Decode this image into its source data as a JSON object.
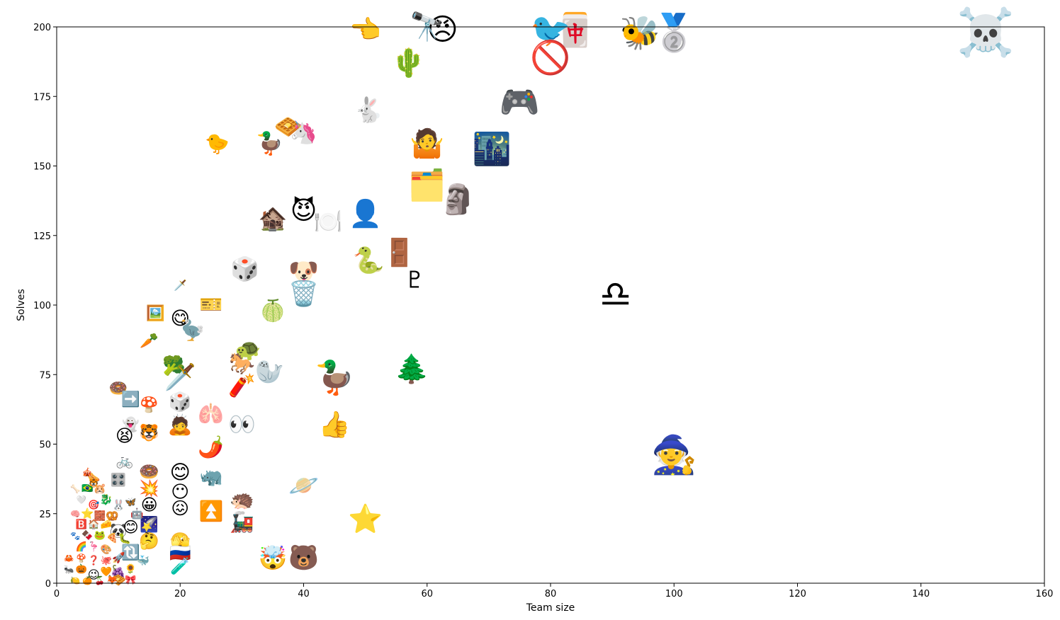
{
  "chart_data": {
    "type": "scatter",
    "title": "",
    "xlabel": "Team size",
    "ylabel": "Solves",
    "xlim": [
      0,
      160
    ],
    "ylim": [
      0,
      200
    ],
    "xticks": [
      0,
      20,
      40,
      60,
      80,
      100,
      120,
      140,
      160
    ],
    "yticks": [
      0,
      25,
      50,
      75,
      100,
      125,
      150,
      175,
      200
    ],
    "grid": false,
    "marker": "emoji",
    "points": [
      {
        "x": 150.5,
        "y": 198,
        "label": "☠️",
        "size": 80
      },
      {
        "x": 100,
        "y": 198,
        "label": "🥈",
        "size": 62
      },
      {
        "x": 94.5,
        "y": 198,
        "label": "🐝",
        "size": 56
      },
      {
        "x": 84,
        "y": 199,
        "label": "🀄",
        "size": 56
      },
      {
        "x": 80,
        "y": 199,
        "label": "🐦",
        "size": 56
      },
      {
        "x": 80,
        "y": 189,
        "label": "🚫",
        "size": 56
      },
      {
        "x": 62.5,
        "y": 199,
        "label": "😠",
        "size": 52
      },
      {
        "x": 60,
        "y": 200,
        "label": "🔭",
        "size": 48
      },
      {
        "x": 50,
        "y": 199,
        "label": "👈",
        "size": 44
      },
      {
        "x": 57,
        "y": 187,
        "label": "🌵",
        "size": 48
      },
      {
        "x": 75,
        "y": 173,
        "label": "🎮",
        "size": 56
      },
      {
        "x": 50.5,
        "y": 170,
        "label": "🐇",
        "size": 42
      },
      {
        "x": 70.5,
        "y": 156,
        "label": "🌃",
        "size": 54
      },
      {
        "x": 60,
        "y": 158,
        "label": "🤷",
        "size": 48
      },
      {
        "x": 26,
        "y": 158,
        "label": "🐤",
        "size": 34
      },
      {
        "x": 34.5,
        "y": 158,
        "label": "🦆",
        "size": 38
      },
      {
        "x": 37.5,
        "y": 164,
        "label": "🧇",
        "size": 38
      },
      {
        "x": 40,
        "y": 162,
        "label": "🦄",
        "size": 38
      },
      {
        "x": 60,
        "y": 143,
        "label": "🗂️",
        "size": 52
      },
      {
        "x": 65,
        "y": 138,
        "label": "🗿",
        "size": 50
      },
      {
        "x": 50,
        "y": 133,
        "label": "👤",
        "size": 46
      },
      {
        "x": 44,
        "y": 130,
        "label": "🍽️",
        "size": 40
      },
      {
        "x": 40,
        "y": 134,
        "label": "😈",
        "size": 44
      },
      {
        "x": 35,
        "y": 131,
        "label": "🏚️",
        "size": 40
      },
      {
        "x": 55.5,
        "y": 119,
        "label": "🚪",
        "size": 46
      },
      {
        "x": 50.5,
        "y": 116,
        "label": "🐍",
        "size": 44
      },
      {
        "x": 58,
        "y": 109,
        "label": "♇",
        "size": 40
      },
      {
        "x": 90.5,
        "y": 104,
        "label": "♎",
        "size": 62
      },
      {
        "x": 30.5,
        "y": 113,
        "label": "🎲",
        "size": 40
      },
      {
        "x": 40,
        "y": 112,
        "label": "🐶",
        "size": 42
      },
      {
        "x": 40,
        "y": 104,
        "label": "🗑️",
        "size": 42
      },
      {
        "x": 20,
        "y": 107,
        "label": "🗡️",
        "size": 18
      },
      {
        "x": 25,
        "y": 100,
        "label": "🎫",
        "size": 32
      },
      {
        "x": 35,
        "y": 98,
        "label": "🍈",
        "size": 36
      },
      {
        "x": 16,
        "y": 97,
        "label": "🖼️",
        "size": 26
      },
      {
        "x": 20,
        "y": 95,
        "label": "😋",
        "size": 32
      },
      {
        "x": 22,
        "y": 91,
        "label": "🦤",
        "size": 34
      },
      {
        "x": 15,
        "y": 87,
        "label": "🥕",
        "size": 26
      },
      {
        "x": 31,
        "y": 84,
        "label": "🐢",
        "size": 36
      },
      {
        "x": 30,
        "y": 79,
        "label": "🐎",
        "size": 36
      },
      {
        "x": 34.5,
        "y": 76,
        "label": "🦭",
        "size": 40
      },
      {
        "x": 19,
        "y": 78,
        "label": "🥦",
        "size": 32
      },
      {
        "x": 20,
        "y": 74,
        "label": "🗡️",
        "size": 44
      },
      {
        "x": 57.5,
        "y": 77,
        "label": "🌲",
        "size": 48
      },
      {
        "x": 45,
        "y": 74,
        "label": "🦆",
        "size": 56
      },
      {
        "x": 30,
        "y": 71,
        "label": "🧨",
        "size": 38
      },
      {
        "x": 10,
        "y": 70,
        "label": "🍩",
        "size": 26
      },
      {
        "x": 12,
        "y": 66,
        "label": "➡️",
        "size": 26
      },
      {
        "x": 20,
        "y": 65,
        "label": "🎲",
        "size": 32
      },
      {
        "x": 15,
        "y": 64,
        "label": "🍄",
        "size": 26
      },
      {
        "x": 25,
        "y": 61,
        "label": "🫁",
        "size": 36
      },
      {
        "x": 12,
        "y": 57,
        "label": "👻",
        "size": 24
      },
      {
        "x": 20,
        "y": 57,
        "label": "🙇",
        "size": 34
      },
      {
        "x": 30,
        "y": 57,
        "label": "👀",
        "size": 38
      },
      {
        "x": 45,
        "y": 57,
        "label": "👍",
        "size": 44
      },
      {
        "x": 11,
        "y": 53,
        "label": "😫",
        "size": 30
      },
      {
        "x": 15,
        "y": 54,
        "label": "🐯",
        "size": 28
      },
      {
        "x": 25,
        "y": 49,
        "label": "🌶️",
        "size": 36
      },
      {
        "x": 100,
        "y": 46,
        "label": "🧙",
        "size": 64
      },
      {
        "x": 11,
        "y": 44,
        "label": "🚲",
        "size": 24
      },
      {
        "x": 15,
        "y": 40,
        "label": "🍩",
        "size": 28
      },
      {
        "x": 20,
        "y": 40,
        "label": "😊",
        "size": 34
      },
      {
        "x": 25,
        "y": 38,
        "label": "🦏",
        "size": 32
      },
      {
        "x": 40,
        "y": 35,
        "label": "🪐",
        "size": 42
      },
      {
        "x": 10,
        "y": 37,
        "label": "🎛️",
        "size": 22
      },
      {
        "x": 15,
        "y": 34,
        "label": "💥",
        "size": 28
      },
      {
        "x": 20,
        "y": 33,
        "label": "😶",
        "size": 30
      },
      {
        "x": 30,
        "y": 30,
        "label": "🦔",
        "size": 34
      },
      {
        "x": 25,
        "y": 26,
        "label": "⏫",
        "size": 34
      },
      {
        "x": 15,
        "y": 28,
        "label": "😀",
        "size": 28
      },
      {
        "x": 20,
        "y": 27,
        "label": "😖",
        "size": 30
      },
      {
        "x": 50,
        "y": 23,
        "label": "⭐",
        "size": 48
      },
      {
        "x": 30,
        "y": 22,
        "label": "🚂",
        "size": 34
      },
      {
        "x": 15,
        "y": 21,
        "label": "🌠",
        "size": 26
      },
      {
        "x": 10,
        "y": 19,
        "label": "🐼",
        "size": 24
      },
      {
        "x": 12,
        "y": 20,
        "label": "😊",
        "size": 26
      },
      {
        "x": 15,
        "y": 15,
        "label": "🤔",
        "size": 28
      },
      {
        "x": 20,
        "y": 15,
        "label": "🫣",
        "size": 28
      },
      {
        "x": 20,
        "y": 11,
        "label": "🇷🇺",
        "size": 30
      },
      {
        "x": 12,
        "y": 11,
        "label": "🔃",
        "size": 26
      },
      {
        "x": 35,
        "y": 9,
        "label": "🤯",
        "size": 40
      },
      {
        "x": 40,
        "y": 9,
        "label": "🐻",
        "size": 42
      },
      {
        "x": 20,
        "y": 6,
        "label": "🧪",
        "size": 28
      },
      {
        "x": 10,
        "y": 4,
        "label": "🍇",
        "size": 22
      },
      {
        "x": 10,
        "y": 1,
        "label": "🧇",
        "size": 22
      },
      {
        "x": 6,
        "y": 3,
        "label": "😉",
        "size": 20
      },
      {
        "x": 6,
        "y": 38,
        "label": "🌭",
        "size": 18
      },
      {
        "x": 5,
        "y": 34,
        "label": "🇧🇷",
        "size": 16
      },
      {
        "x": 3,
        "y": 34,
        "label": "🦴",
        "size": 14
      },
      {
        "x": 7,
        "y": 34,
        "label": "🐹",
        "size": 18
      },
      {
        "x": 8,
        "y": 30,
        "label": "🐉",
        "size": 18
      },
      {
        "x": 6,
        "y": 28,
        "label": "🎯",
        "size": 16
      },
      {
        "x": 4,
        "y": 30,
        "label": "🤍",
        "size": 14
      },
      {
        "x": 3,
        "y": 25,
        "label": "🧠",
        "size": 14
      },
      {
        "x": 5,
        "y": 25,
        "label": "⭐",
        "size": 18
      },
      {
        "x": 7,
        "y": 24,
        "label": "🧱",
        "size": 16
      },
      {
        "x": 9,
        "y": 24,
        "label": "🥨",
        "size": 18
      },
      {
        "x": 4,
        "y": 21,
        "label": "🅱️",
        "size": 16
      },
      {
        "x": 6,
        "y": 21,
        "label": "🏠",
        "size": 16
      },
      {
        "x": 8,
        "y": 21,
        "label": "🧀",
        "size": 16
      },
      {
        "x": 10,
        "y": 28,
        "label": "🐰",
        "size": 18
      },
      {
        "x": 12,
        "y": 29,
        "label": "🦋",
        "size": 16
      },
      {
        "x": 13,
        "y": 25,
        "label": "🤖",
        "size": 18
      },
      {
        "x": 3,
        "y": 17,
        "label": "🐾",
        "size": 14
      },
      {
        "x": 5,
        "y": 17,
        "label": "🍫",
        "size": 16
      },
      {
        "x": 7,
        "y": 17,
        "label": "🐸",
        "size": 16
      },
      {
        "x": 9,
        "y": 16,
        "label": "🍕",
        "size": 16
      },
      {
        "x": 11,
        "y": 16,
        "label": "🐛",
        "size": 18
      },
      {
        "x": 4,
        "y": 13,
        "label": "🌈",
        "size": 16
      },
      {
        "x": 6,
        "y": 13,
        "label": "🦩",
        "size": 16
      },
      {
        "x": 8,
        "y": 12,
        "label": "🎨",
        "size": 16
      },
      {
        "x": 2,
        "y": 9,
        "label": "🦀",
        "size": 14
      },
      {
        "x": 4,
        "y": 9,
        "label": "🍄",
        "size": 14
      },
      {
        "x": 6,
        "y": 8,
        "label": "❓",
        "size": 16
      },
      {
        "x": 8,
        "y": 8,
        "label": "🐙",
        "size": 16
      },
      {
        "x": 10,
        "y": 9,
        "label": "🚀",
        "size": 18
      },
      {
        "x": 2,
        "y": 5,
        "label": "🐜",
        "size": 14
      },
      {
        "x": 4,
        "y": 5,
        "label": "🎃",
        "size": 16
      },
      {
        "x": 8,
        "y": 4,
        "label": "🧡",
        "size": 16
      },
      {
        "x": 3,
        "y": 1,
        "label": "🍋",
        "size": 14
      },
      {
        "x": 5,
        "y": 1,
        "label": "🍊",
        "size": 14
      },
      {
        "x": 7,
        "y": 1,
        "label": "🍒",
        "size": 14
      },
      {
        "x": 9,
        "y": 1,
        "label": "🦊",
        "size": 16
      },
      {
        "x": 12,
        "y": 1,
        "label": "🎀",
        "size": 16
      },
      {
        "x": 12,
        "y": 5,
        "label": "🌻",
        "size": 16
      },
      {
        "x": 14,
        "y": 8,
        "label": "🐳",
        "size": 18
      },
      {
        "x": 5,
        "y": 40,
        "label": "🎪",
        "size": 14
      },
      {
        "x": 6,
        "y": 36,
        "label": "🐯",
        "size": 14
      }
    ]
  }
}
